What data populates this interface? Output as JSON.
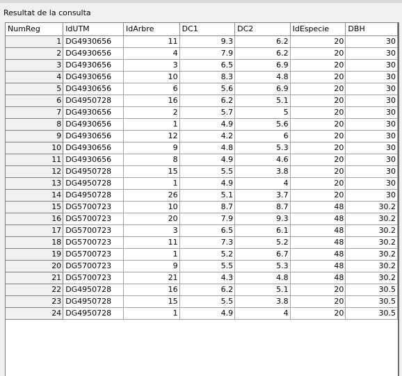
{
  "panel": {
    "caption": "Resultat de la consulta"
  },
  "grid": {
    "columns": [
      "NumReg",
      "IdUTM",
      "IdArbre",
      "DC1",
      "DC2",
      "IdEspecie",
      "DBH"
    ],
    "rows": [
      [
        "1",
        "DG4930656",
        "11",
        "9.3",
        "6.2",
        "20",
        "30"
      ],
      [
        "2",
        "DG4930656",
        "4",
        "7.9",
        "6.2",
        "20",
        "30"
      ],
      [
        "3",
        "DG4930656",
        "3",
        "6.5",
        "6.9",
        "20",
        "30"
      ],
      [
        "4",
        "DG4930656",
        "10",
        "8.3",
        "4.8",
        "20",
        "30"
      ],
      [
        "5",
        "DG4930656",
        "6",
        "5.6",
        "6.9",
        "20",
        "30"
      ],
      [
        "6",
        "DG4950728",
        "16",
        "6.2",
        "5.1",
        "20",
        "30"
      ],
      [
        "7",
        "DG4930656",
        "2",
        "5.7",
        "5",
        "20",
        "30"
      ],
      [
        "8",
        "DG4930656",
        "1",
        "4.9",
        "5.6",
        "20",
        "30"
      ],
      [
        "9",
        "DG4930656",
        "12",
        "4.2",
        "6",
        "20",
        "30"
      ],
      [
        "10",
        "DG4930656",
        "9",
        "4.8",
        "5.3",
        "20",
        "30"
      ],
      [
        "11",
        "DG4930656",
        "8",
        "4.9",
        "4.6",
        "20",
        "30"
      ],
      [
        "12",
        "DG4950728",
        "15",
        "5.5",
        "3.8",
        "20",
        "30"
      ],
      [
        "13",
        "DG4950728",
        "1",
        "4.9",
        "4",
        "20",
        "30"
      ],
      [
        "14",
        "DG4950728",
        "26",
        "5.1",
        "3.7",
        "20",
        "30"
      ],
      [
        "15",
        "DG5700723",
        "10",
        "8.7",
        "8.7",
        "48",
        "30.2"
      ],
      [
        "16",
        "DG5700723",
        "20",
        "7.9",
        "9.3",
        "48",
        "30.2"
      ],
      [
        "17",
        "DG5700723",
        "3",
        "6.5",
        "6.1",
        "48",
        "30.2"
      ],
      [
        "18",
        "DG5700723",
        "11",
        "7.3",
        "5.2",
        "48",
        "30.2"
      ],
      [
        "19",
        "DG5700723",
        "1",
        "5.2",
        "6.7",
        "48",
        "30.2"
      ],
      [
        "20",
        "DG5700723",
        "9",
        "5.5",
        "5.3",
        "48",
        "30.2"
      ],
      [
        "21",
        "DG5700723",
        "21",
        "4.3",
        "4.8",
        "48",
        "30.2"
      ],
      [
        "22",
        "DG4950728",
        "16",
        "6.2",
        "5.1",
        "20",
        "30.5"
      ],
      [
        "23",
        "DG4950728",
        "15",
        "5.5",
        "3.8",
        "20",
        "30.5"
      ],
      [
        "24",
        "DG4950728",
        "1",
        "4.9",
        "4",
        "20",
        "30.5"
      ]
    ]
  }
}
